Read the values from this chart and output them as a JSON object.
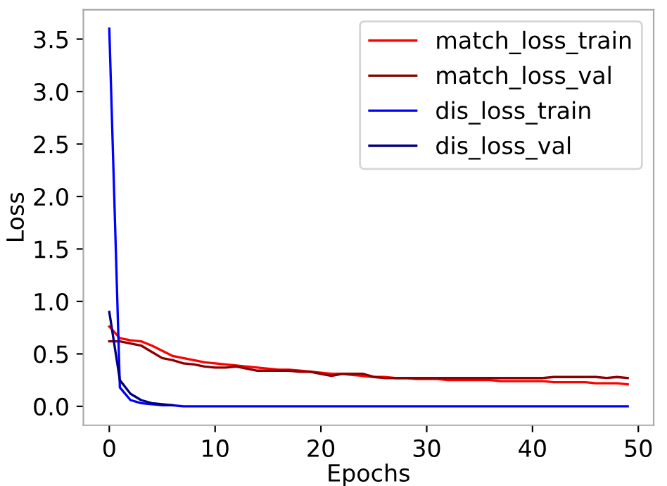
{
  "chart_data": {
    "type": "line",
    "xlabel": "Epochs",
    "ylabel": "Loss",
    "x": [
      0,
      1,
      2,
      3,
      4,
      5,
      6,
      7,
      8,
      9,
      10,
      11,
      12,
      13,
      14,
      15,
      16,
      17,
      18,
      19,
      20,
      21,
      22,
      23,
      24,
      25,
      26,
      27,
      28,
      29,
      30,
      31,
      32,
      33,
      34,
      35,
      36,
      37,
      38,
      39,
      40,
      41,
      42,
      43,
      44,
      45,
      46,
      47,
      48,
      49
    ],
    "series": [
      {
        "name": "match_loss_train",
        "color": "#ff0000",
        "values": [
          0.76,
          0.65,
          0.63,
          0.62,
          0.58,
          0.53,
          0.48,
          0.46,
          0.44,
          0.42,
          0.41,
          0.4,
          0.39,
          0.38,
          0.37,
          0.36,
          0.35,
          0.35,
          0.34,
          0.33,
          0.32,
          0.31,
          0.31,
          0.3,
          0.29,
          0.28,
          0.28,
          0.27,
          0.27,
          0.26,
          0.26,
          0.26,
          0.25,
          0.25,
          0.25,
          0.25,
          0.25,
          0.24,
          0.24,
          0.24,
          0.24,
          0.24,
          0.23,
          0.23,
          0.23,
          0.23,
          0.22,
          0.22,
          0.22,
          0.21
        ]
      },
      {
        "name": "match_loss_val",
        "color": "#8b0000",
        "values": [
          0.62,
          0.62,
          0.6,
          0.58,
          0.52,
          0.46,
          0.44,
          0.41,
          0.4,
          0.38,
          0.37,
          0.37,
          0.38,
          0.36,
          0.34,
          0.34,
          0.34,
          0.34,
          0.33,
          0.33,
          0.31,
          0.29,
          0.31,
          0.31,
          0.31,
          0.28,
          0.27,
          0.27,
          0.27,
          0.27,
          0.27,
          0.27,
          0.27,
          0.27,
          0.27,
          0.27,
          0.27,
          0.27,
          0.27,
          0.27,
          0.27,
          0.27,
          0.28,
          0.28,
          0.28,
          0.28,
          0.28,
          0.27,
          0.28,
          0.27
        ]
      },
      {
        "name": "dis_loss_train",
        "color": "#0000ff",
        "values": [
          3.6,
          0.18,
          0.06,
          0.03,
          0.02,
          0.01,
          0.01,
          0.0,
          0.0,
          0.0,
          0.0,
          0.0,
          0.0,
          0.0,
          0.0,
          0.0,
          0.0,
          0.0,
          0.0,
          0.0,
          0.0,
          0.0,
          0.0,
          0.0,
          0.0,
          0.0,
          0.0,
          0.0,
          0.0,
          0.0,
          0.0,
          0.0,
          0.0,
          0.0,
          0.0,
          0.0,
          0.0,
          0.0,
          0.0,
          0.0,
          0.0,
          0.0,
          0.0,
          0.0,
          0.0,
          0.0,
          0.0,
          0.0,
          0.0,
          0.0
        ]
      },
      {
        "name": "dis_loss_val",
        "color": "#000080",
        "values": [
          0.9,
          0.25,
          0.12,
          0.06,
          0.03,
          0.02,
          0.01,
          null,
          null,
          null,
          null,
          null,
          null,
          null,
          null,
          null,
          null,
          null,
          null,
          null,
          null,
          null,
          null,
          null,
          null,
          null,
          null,
          null,
          null,
          null,
          null,
          null,
          null,
          null,
          null,
          null,
          null,
          null,
          null,
          null,
          null,
          null,
          null,
          null,
          null,
          null,
          null,
          null,
          null,
          null
        ]
      }
    ],
    "xlim": [
      -2.45,
      51.45
    ],
    "ylim": [
      -0.18,
      3.78
    ],
    "xticks": [
      0,
      10,
      20,
      30,
      40,
      50
    ],
    "yticks": [
      {
        "value": 0,
        "label": "0.0"
      },
      {
        "value": 0.5,
        "label": "0.5"
      },
      {
        "value": 1,
        "label": "1.0"
      },
      {
        "value": 1.5,
        "label": "1.5"
      },
      {
        "value": 2,
        "label": "2.0"
      },
      {
        "value": 2.5,
        "label": "2.5"
      },
      {
        "value": 3,
        "label": "3.0"
      },
      {
        "value": 3.5,
        "label": "3.5"
      }
    ],
    "legend": "top right",
    "grid": false
  }
}
